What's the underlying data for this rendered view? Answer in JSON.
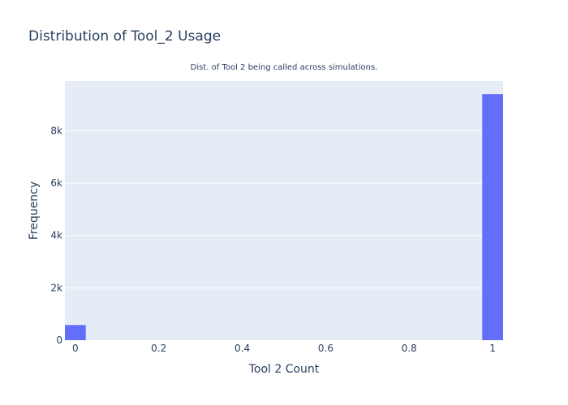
{
  "colors": {
    "plot_bg": "#e5ecf6",
    "grid": "#ffffff",
    "bar": "#636efa",
    "text": "#2a3f5f"
  },
  "chart_data": {
    "type": "bar",
    "title": "Distribution of Tool_2 Usage",
    "subtitle": "Dist. of Tool 2 being called across simulations.",
    "xlabel": "Tool 2 Count",
    "ylabel": "Frequency",
    "xlim": [
      -0.025,
      1.025
    ],
    "ylim": [
      0,
      9900
    ],
    "bin_width": 0.05,
    "bins": [
      {
        "x0": -0.025,
        "x1": 0.025,
        "count": 580
      },
      {
        "x0": 0.975,
        "x1": 1.025,
        "count": 9400
      }
    ],
    "x_ticks": [
      {
        "value": 0,
        "label": "0"
      },
      {
        "value": 0.2,
        "label": "0.2"
      },
      {
        "value": 0.4,
        "label": "0.4"
      },
      {
        "value": 0.6,
        "label": "0.6"
      },
      {
        "value": 0.8,
        "label": "0.8"
      },
      {
        "value": 1,
        "label": "1"
      }
    ],
    "y_ticks": [
      {
        "value": 0,
        "label": "0"
      },
      {
        "value": 2000,
        "label": "2k"
      },
      {
        "value": 4000,
        "label": "4k"
      },
      {
        "value": 6000,
        "label": "6k"
      },
      {
        "value": 8000,
        "label": "8k"
      }
    ],
    "grid": true
  }
}
